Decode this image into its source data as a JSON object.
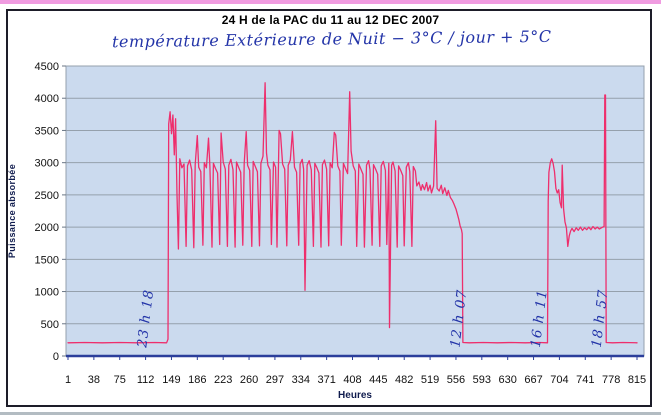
{
  "page": {
    "title": "24 H de la PAC du 11 au 12 DEC 2007",
    "subtitle_handwritten": "température Extérieure de Nuit − 3°C / jour + 5°C"
  },
  "colors": {
    "line_pink": "#ee2e6c",
    "plot_background": "#cbdaee",
    "gridline": "#95a0ac",
    "axis_navy": "#2b3e9b",
    "handwriting_blue": "#2334a8",
    "frame_border": "#1d1d29",
    "top_band_pink": "#f09ce1"
  },
  "chart_data": {
    "type": "line",
    "title": "24 H de la PAC du 11 au 12 DEC 2007",
    "xlabel": "Heures",
    "ylabel": "Puissance absorbée",
    "xlim": [
      1,
      815
    ],
    "ylim": [
      0,
      4500
    ],
    "x_ticks": [
      1,
      38,
      75,
      112,
      149,
      186,
      223,
      260,
      297,
      334,
      371,
      408,
      445,
      482,
      519,
      556,
      593,
      630,
      667,
      704,
      741,
      778,
      815
    ],
    "y_ticks": [
      0,
      500,
      1000,
      1500,
      2000,
      2500,
      3000,
      3500,
      4000,
      4500
    ],
    "grid": true,
    "legend": false,
    "annotations": [
      {
        "text": "23 h 18",
        "x": 100
      },
      {
        "text": "12 h 07",
        "x": 548
      },
      {
        "text": "16 h 11",
        "x": 663
      },
      {
        "text": "18 h 57",
        "x": 750
      }
    ],
    "series": [
      {
        "name": "Puissance absorbée",
        "points": [
          [
            1,
            205
          ],
          [
            25,
            210
          ],
          [
            50,
            205
          ],
          [
            75,
            210
          ],
          [
            100,
            205
          ],
          [
            125,
            210
          ],
          [
            142,
            205
          ],
          [
            144,
            260
          ],
          [
            145,
            3600
          ],
          [
            147,
            3790
          ],
          [
            149,
            3450
          ],
          [
            151,
            3740
          ],
          [
            153,
            3120
          ],
          [
            155,
            3680
          ],
          [
            157,
            2500
          ],
          [
            159,
            1660
          ],
          [
            161,
            3060
          ],
          [
            164,
            2920
          ],
          [
            167,
            2980
          ],
          [
            170,
            1700
          ],
          [
            172,
            2950
          ],
          [
            175,
            3040
          ],
          [
            178,
            2890
          ],
          [
            181,
            1680
          ],
          [
            183,
            2970
          ],
          [
            186,
            3420
          ],
          [
            188,
            2930
          ],
          [
            191,
            2860
          ],
          [
            194,
            1720
          ],
          [
            196,
            3000
          ],
          [
            199,
            2920
          ],
          [
            202,
            3380
          ],
          [
            204,
            2940
          ],
          [
            207,
            1690
          ],
          [
            209,
            2990
          ],
          [
            212,
            2910
          ],
          [
            215,
            2840
          ],
          [
            218,
            1730
          ],
          [
            220,
            3460
          ],
          [
            223,
            3010
          ],
          [
            226,
            2900
          ],
          [
            229,
            1700
          ],
          [
            231,
            2960
          ],
          [
            234,
            3050
          ],
          [
            237,
            2890
          ],
          [
            240,
            1690
          ],
          [
            242,
            3010
          ],
          [
            245,
            2930
          ],
          [
            248,
            2850
          ],
          [
            251,
            1720
          ],
          [
            253,
            2990
          ],
          [
            256,
            3480
          ],
          [
            258,
            2960
          ],
          [
            261,
            2880
          ],
          [
            264,
            1700
          ],
          [
            266,
            3020
          ],
          [
            269,
            2940
          ],
          [
            272,
            2860
          ],
          [
            275,
            1710
          ],
          [
            277,
            2990
          ],
          [
            280,
            3100
          ],
          [
            283,
            4240
          ],
          [
            285,
            3150
          ],
          [
            287,
            2960
          ],
          [
            290,
            2890
          ],
          [
            292,
            1730
          ],
          [
            295,
            3010
          ],
          [
            298,
            2930
          ],
          [
            300,
            1690
          ],
          [
            303,
            3500
          ],
          [
            305,
            3450
          ],
          [
            308,
            2980
          ],
          [
            311,
            2900
          ],
          [
            314,
            1710
          ],
          [
            316,
            2960
          ],
          [
            319,
            3040
          ],
          [
            322,
            3480
          ],
          [
            325,
            2930
          ],
          [
            328,
            2850
          ],
          [
            331,
            1720
          ],
          [
            333,
            2980
          ],
          [
            336,
            3050
          ],
          [
            338,
            2900
          ],
          [
            340,
            1020
          ],
          [
            343,
            2960
          ],
          [
            346,
            3030
          ],
          [
            349,
            2890
          ],
          [
            352,
            1700
          ],
          [
            354,
            2990
          ],
          [
            357,
            2920
          ],
          [
            360,
            2840
          ],
          [
            363,
            1690
          ],
          [
            365,
            2970
          ],
          [
            368,
            3040
          ],
          [
            371,
            2900
          ],
          [
            374,
            1710
          ],
          [
            376,
            3000
          ],
          [
            379,
            2920
          ],
          [
            382,
            3470
          ],
          [
            384,
            3430
          ],
          [
            387,
            2950
          ],
          [
            390,
            2870
          ],
          [
            392,
            1720
          ],
          [
            395,
            2990
          ],
          [
            398,
            2910
          ],
          [
            401,
            2830
          ],
          [
            404,
            4100
          ],
          [
            406,
            3180
          ],
          [
            409,
            2950
          ],
          [
            412,
            2870
          ],
          [
            414,
            1700
          ],
          [
            417,
            2980
          ],
          [
            420,
            2900
          ],
          [
            423,
            2820
          ],
          [
            425,
            1690
          ],
          [
            428,
            2960
          ],
          [
            431,
            3030
          ],
          [
            433,
            2890
          ],
          [
            436,
            1720
          ],
          [
            438,
            2970
          ],
          [
            441,
            2900
          ],
          [
            444,
            2820
          ],
          [
            447,
            1700
          ],
          [
            449,
            2950
          ],
          [
            452,
            3020
          ],
          [
            455,
            2880
          ],
          [
            457,
            1730
          ],
          [
            460,
            2990
          ],
          [
            461,
            440
          ],
          [
            464,
            2960
          ],
          [
            466,
            3010
          ],
          [
            469,
            2870
          ],
          [
            472,
            1690
          ],
          [
            474,
            2950
          ],
          [
            477,
            2880
          ],
          [
            480,
            2800
          ],
          [
            482,
            1710
          ],
          [
            485,
            2930
          ],
          [
            488,
            3000
          ],
          [
            490,
            2860
          ],
          [
            493,
            1700
          ],
          [
            495,
            2940
          ],
          [
            498,
            2870
          ],
          [
            500,
            2640
          ],
          [
            503,
            2700
          ],
          [
            506,
            2570
          ],
          [
            508,
            2660
          ],
          [
            511,
            2580
          ],
          [
            514,
            2690
          ],
          [
            516,
            2560
          ],
          [
            519,
            2650
          ],
          [
            521,
            2530
          ],
          [
            524,
            2640
          ],
          [
            527,
            3650
          ],
          [
            529,
            2600
          ],
          [
            532,
            2560
          ],
          [
            535,
            2650
          ],
          [
            537,
            2520
          ],
          [
            540,
            2610
          ],
          [
            543,
            2490
          ],
          [
            545,
            2570
          ],
          [
            548,
            2460
          ],
          [
            551,
            2410
          ],
          [
            553,
            2360
          ],
          [
            556,
            2280
          ],
          [
            558,
            2200
          ],
          [
            560,
            2120
          ],
          [
            562,
            2020
          ],
          [
            564,
            1960
          ],
          [
            565,
            1900
          ],
          [
            566,
            210
          ],
          [
            575,
            205
          ],
          [
            595,
            210
          ],
          [
            615,
            205
          ],
          [
            635,
            210
          ],
          [
            655,
            205
          ],
          [
            675,
            210
          ],
          [
            687,
            205
          ],
          [
            688,
            2400
          ],
          [
            689,
            2850
          ],
          [
            691,
            3000
          ],
          [
            693,
            3060
          ],
          [
            695,
            2990
          ],
          [
            697,
            2860
          ],
          [
            699,
            2600
          ],
          [
            701,
            2530
          ],
          [
            703,
            2580
          ],
          [
            705,
            2380
          ],
          [
            707,
            2300
          ],
          [
            708,
            2960
          ],
          [
            710,
            2280
          ],
          [
            712,
            2080
          ],
          [
            714,
            1990
          ],
          [
            716,
            1700
          ],
          [
            718,
            1860
          ],
          [
            720,
            1940
          ],
          [
            722,
            1980
          ],
          [
            725,
            1930
          ],
          [
            728,
            1990
          ],
          [
            731,
            1950
          ],
          [
            734,
            2000
          ],
          [
            737,
            1950
          ],
          [
            740,
            1990
          ],
          [
            743,
            1960
          ],
          [
            746,
            2000
          ],
          [
            749,
            1960
          ],
          [
            752,
            2010
          ],
          [
            755,
            1970
          ],
          [
            758,
            2000
          ],
          [
            761,
            1970
          ],
          [
            764,
            1990
          ],
          [
            766,
            2000
          ],
          [
            768,
            2010
          ],
          [
            769,
            4050
          ],
          [
            770,
            4050
          ],
          [
            771,
            210
          ],
          [
            780,
            205
          ],
          [
            795,
            210
          ],
          [
            815,
            205
          ]
        ]
      }
    ]
  }
}
